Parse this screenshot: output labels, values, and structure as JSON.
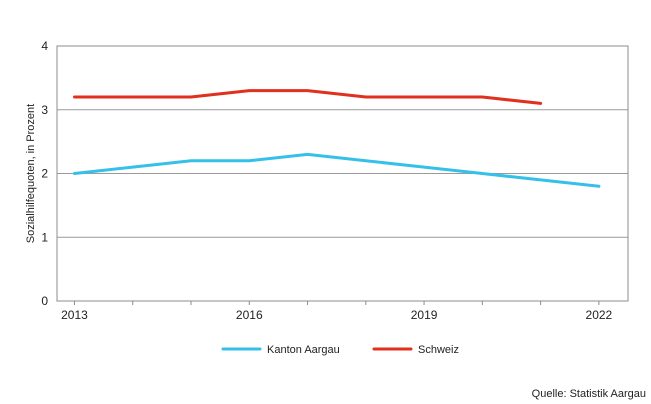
{
  "chart_data": {
    "type": "line",
    "ylabel": "Sozialhilfequoten, in Prozent",
    "xlim": [
      2012.7,
      2022.5
    ],
    "ylim": [
      0,
      4
    ],
    "y_ticks": [
      0,
      1,
      2,
      3,
      4
    ],
    "x_ticks": [
      2013,
      2016,
      2019,
      2022
    ],
    "series": [
      {
        "name": "Kanton Aargau",
        "color": "#35c0ea",
        "x": [
          2013,
          2014,
          2015,
          2016,
          2017,
          2018,
          2019,
          2020,
          2021,
          2022
        ],
        "values": [
          2.0,
          2.1,
          2.2,
          2.2,
          2.3,
          2.2,
          2.1,
          2.0,
          1.9,
          1.8
        ]
      },
      {
        "name": "Schweiz",
        "color": "#e0301e",
        "x": [
          2013,
          2014,
          2015,
          2016,
          2017,
          2018,
          2019,
          2020,
          2021
        ],
        "values": [
          3.2,
          3.2,
          3.2,
          3.3,
          3.3,
          3.2,
          3.2,
          3.2,
          3.1
        ]
      }
    ],
    "grid": true,
    "legend_position": "bottom-center",
    "source": "Quelle: Statistik Aargau"
  }
}
